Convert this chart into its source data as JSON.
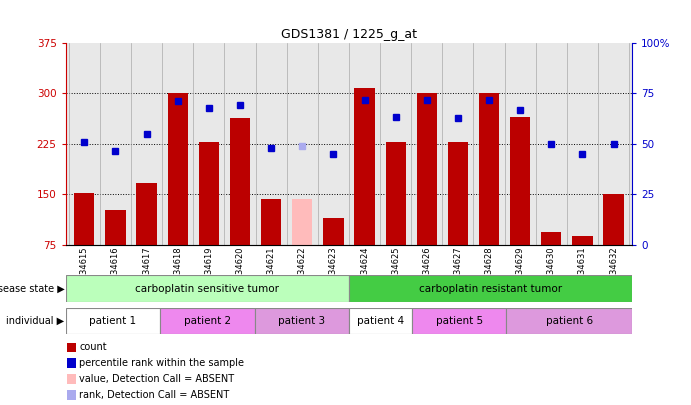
{
  "title": "GDS1381 / 1225_g_at",
  "samples": [
    "GSM34615",
    "GSM34616",
    "GSM34617",
    "GSM34618",
    "GSM34619",
    "GSM34620",
    "GSM34621",
    "GSM34622",
    "GSM34623",
    "GSM34624",
    "GSM34625",
    "GSM34626",
    "GSM34627",
    "GSM34628",
    "GSM34629",
    "GSM34630",
    "GSM34631",
    "GSM34632"
  ],
  "bar_values": [
    152,
    127,
    167,
    300,
    228,
    263,
    143,
    143,
    115,
    308,
    228,
    300,
    228,
    300,
    265,
    95,
    88,
    150
  ],
  "bar_colors": [
    "#bb0000",
    "#bb0000",
    "#bb0000",
    "#bb0000",
    "#bb0000",
    "#bb0000",
    "#bb0000",
    "#ffbbbb",
    "#bb0000",
    "#bb0000",
    "#bb0000",
    "#bb0000",
    "#bb0000",
    "#bb0000",
    "#bb0000",
    "#bb0000",
    "#bb0000",
    "#bb0000"
  ],
  "dot_values": [
    228,
    215,
    240,
    288,
    278,
    283,
    218,
    222,
    210,
    290,
    265,
    290,
    263,
    290,
    275,
    225,
    210,
    225
  ],
  "dot_colors": [
    "#0000cc",
    "#0000cc",
    "#0000cc",
    "#0000cc",
    "#0000cc",
    "#0000cc",
    "#0000cc",
    "#aaaaee",
    "#0000cc",
    "#0000cc",
    "#0000cc",
    "#0000cc",
    "#0000cc",
    "#0000cc",
    "#0000cc",
    "#0000cc",
    "#0000cc",
    "#0000cc"
  ],
  "ylim_left": [
    75,
    375
  ],
  "ylim_right": [
    0,
    100
  ],
  "yticks_left": [
    75,
    150,
    225,
    300,
    375
  ],
  "yticks_right": [
    0,
    25,
    50,
    75,
    100
  ],
  "disease_state_groups": [
    {
      "label": "carboplatin sensitive tumor",
      "start": 0,
      "end": 9,
      "color": "#bbffbb"
    },
    {
      "label": "carboplatin resistant tumor",
      "start": 9,
      "end": 18,
      "color": "#44cc44"
    }
  ],
  "individual_groups": [
    {
      "label": "patient 1",
      "start": 0,
      "end": 3,
      "color": "#ffffff"
    },
    {
      "label": "patient 2",
      "start": 3,
      "end": 6,
      "color": "#ee88ee"
    },
    {
      "label": "patient 3",
      "start": 6,
      "end": 9,
      "color": "#dd99dd"
    },
    {
      "label": "patient 4",
      "start": 9,
      "end": 11,
      "color": "#ffffff"
    },
    {
      "label": "patient 5",
      "start": 11,
      "end": 14,
      "color": "#ee88ee"
    },
    {
      "label": "patient 6",
      "start": 14,
      "end": 18,
      "color": "#dd99dd"
    }
  ],
  "legend_items": [
    {
      "label": "count",
      "color": "#bb0000"
    },
    {
      "label": "percentile rank within the sample",
      "color": "#0000cc"
    },
    {
      "label": "value, Detection Call = ABSENT",
      "color": "#ffbbbb"
    },
    {
      "label": "rank, Detection Call = ABSENT",
      "color": "#aaaaee"
    }
  ],
  "plot_bg": "#e8e8e8",
  "fig_bg": "#ffffff"
}
